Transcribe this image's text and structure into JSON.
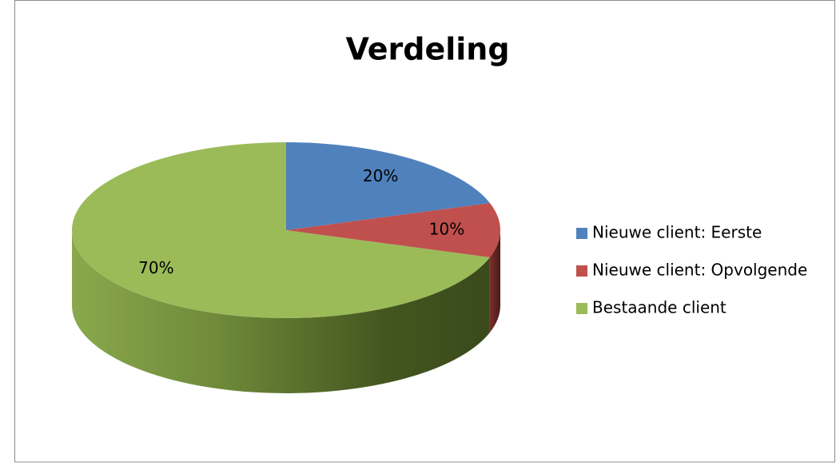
{
  "chart_data": {
    "type": "pie",
    "title": "Verdeling",
    "categories": [
      "Nieuwe client: Eerste",
      "Nieuwe client: Opvolgende",
      "Bestaande client"
    ],
    "values": [
      20,
      10,
      70
    ],
    "value_labels": [
      "20%",
      "10%",
      "70%"
    ],
    "colors": [
      "#4f81bd",
      "#c0504d",
      "#9bbb59"
    ],
    "legend": "right"
  }
}
